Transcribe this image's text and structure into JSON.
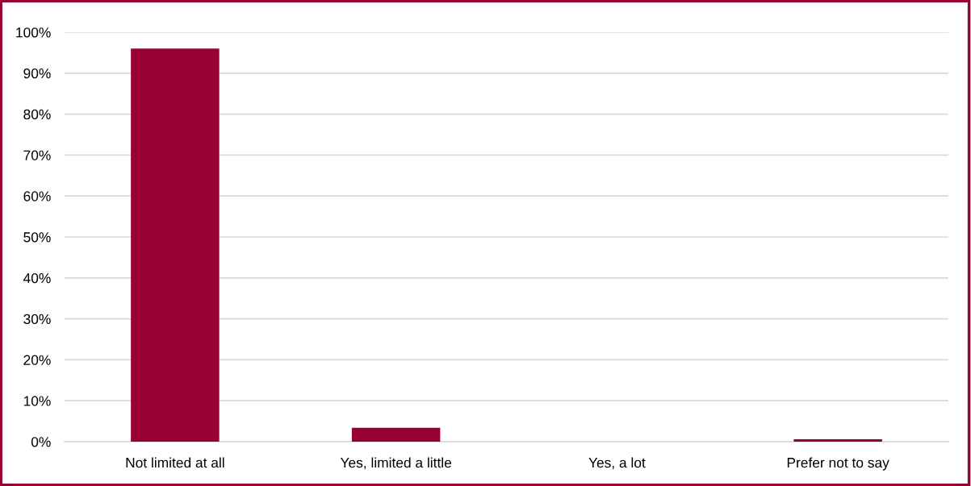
{
  "chart_data": {
    "type": "bar",
    "categories": [
      "Not limited at all",
      "Yes, limited a little",
      "Yes, a lot",
      "Prefer not to say"
    ],
    "values": [
      96.0,
      3.4,
      0,
      0.6
    ],
    "color": "#990033",
    "ylim": [
      0,
      100
    ],
    "yticks": [
      {
        "value": 0,
        "label": "0%"
      },
      {
        "value": 10,
        "label": "10%"
      },
      {
        "value": 20,
        "label": "20%"
      },
      {
        "value": 30,
        "label": "30%"
      },
      {
        "value": 40,
        "label": "40%"
      },
      {
        "value": 50,
        "label": "50%"
      },
      {
        "value": 60,
        "label": "60%"
      },
      {
        "value": 70,
        "label": "70%"
      },
      {
        "value": 80,
        "label": "80%"
      },
      {
        "value": 90,
        "label": "90%"
      },
      {
        "value": 100,
        "label": "100%"
      }
    ],
    "grid": "y"
  }
}
